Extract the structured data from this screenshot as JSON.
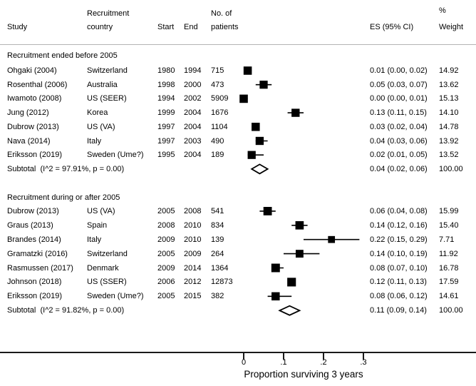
{
  "header": {
    "study": "Study",
    "country_line1": "Recruitment",
    "country_line2": "country",
    "start": "Start",
    "end": "End",
    "patients_line1": "No. of",
    "patients_line2": "patients",
    "es": "ES (95% CI)",
    "weight_line1": "%",
    "weight_line2": "Weight"
  },
  "chart_data": {
    "type": "forest",
    "xlabel": "Proportion surviving 3 years",
    "x_ticks": [
      {
        "label": "0",
        "value": 0
      },
      {
        "label": ".1",
        "value": 0.1
      },
      {
        "label": ".2",
        "value": 0.2
      },
      {
        "label": ".3",
        "value": 0.3
      }
    ],
    "xlim": [
      -0.61,
      0.58
    ],
    "marker_color": "#000000",
    "diamond_fill": "#ffffff",
    "groups": [
      {
        "label": "Recruitment ended before 2005",
        "studies": [
          {
            "study": "Ohgaki (2004)",
            "country": "Switzerland",
            "start": "1980",
            "end": "1994",
            "patients": "715",
            "es": 0.01,
            "lo": 0.0,
            "hi": 0.02,
            "es_text": "0.01 (0.00, 0.02)",
            "weight": "14.92"
          },
          {
            "study": "Rosenthal (2006)",
            "country": "Australia",
            "start": "1998",
            "end": "2000",
            "patients": "473",
            "es": 0.05,
            "lo": 0.03,
            "hi": 0.07,
            "es_text": "0.05 (0.03, 0.07)",
            "weight": "13.62"
          },
          {
            "study": "Iwamoto (2008)",
            "country": "US (SEER)",
            "start": "1994",
            "end": "2002",
            "patients": "5909",
            "es": 0.0,
            "lo": 0.0,
            "hi": 0.01,
            "es_text": "0.00 (0.00, 0.01)",
            "weight": "15.13"
          },
          {
            "study": "Jung (2012)",
            "country": "Korea",
            "start": "1999",
            "end": "2004",
            "patients": "1676",
            "es": 0.13,
            "lo": 0.11,
            "hi": 0.15,
            "es_text": "0.13 (0.11, 0.15)",
            "weight": "14.10"
          },
          {
            "study": "Dubrow (2013)",
            "country": "US (VA)",
            "start": "1997",
            "end": "2004",
            "patients": "1104",
            "es": 0.03,
            "lo": 0.02,
            "hi": 0.04,
            "es_text": "0.03 (0.02, 0.04)",
            "weight": "14.78"
          },
          {
            "study": "Nava (2014)",
            "country": "Italy",
            "start": "1997",
            "end": "2003",
            "patients": "490",
            "es": 0.04,
            "lo": 0.03,
            "hi": 0.06,
            "es_text": "0.04 (0.03, 0.06)",
            "weight": "13.92"
          },
          {
            "study": "Eriksson (2019)",
            "country": "Sweden (Ume?)",
            "start": "1995",
            "end": "2004",
            "patients": "189",
            "es": 0.02,
            "lo": 0.01,
            "hi": 0.05,
            "es_text": "0.02 (0.01, 0.05)",
            "weight": "13.52"
          }
        ],
        "subtotal": {
          "label": "Subtotal  (I^2 = 97.91%, p = 0.00)",
          "es": 0.04,
          "lo": 0.02,
          "hi": 0.06,
          "es_text": "0.04 (0.02, 0.06)",
          "weight": "100.00"
        }
      },
      {
        "label": "Recruitment during or after 2005",
        "studies": [
          {
            "study": "Dubrow (2013)",
            "country": "US (VA)",
            "start": "2005",
            "end": "2008",
            "patients": "541",
            "es": 0.06,
            "lo": 0.04,
            "hi": 0.08,
            "es_text": "0.06 (0.04, 0.08)",
            "weight": "15.99"
          },
          {
            "study": "Graus (2013)",
            "country": "Spain",
            "start": "2008",
            "end": "2010",
            "patients": "834",
            "es": 0.14,
            "lo": 0.12,
            "hi": 0.16,
            "es_text": "0.14 (0.12, 0.16)",
            "weight": "15.40"
          },
          {
            "study": "Brandes (2014)",
            "country": "Italy",
            "start": "2009",
            "end": "2010",
            "patients": "139",
            "es": 0.22,
            "lo": 0.15,
            "hi": 0.29,
            "es_text": "0.22 (0.15, 0.29)",
            "weight": "7.71"
          },
          {
            "study": "Gramatzki (2016)",
            "country": "Switzerland",
            "start": "2005",
            "end": "2009",
            "patients": "264",
            "es": 0.14,
            "lo": 0.1,
            "hi": 0.19,
            "es_text": "0.14 (0.10, 0.19)",
            "weight": "11.92"
          },
          {
            "study": "Rasmussen (2017)",
            "country": "Denmark",
            "start": "2009",
            "end": "2014",
            "patients": "1364",
            "es": 0.08,
            "lo": 0.07,
            "hi": 0.1,
            "es_text": "0.08 (0.07, 0.10)",
            "weight": "16.78"
          },
          {
            "study": "Johnson (2018)",
            "country": "US (SSER)",
            "start": "2006",
            "end": "2012",
            "patients": "12873",
            "es": 0.12,
            "lo": 0.11,
            "hi": 0.13,
            "es_text": "0.12 (0.11, 0.13)",
            "weight": "17.59"
          },
          {
            "study": "Eriksson (2019)",
            "country": "Sweden (Ume?)",
            "start": "2005",
            "end": "2015",
            "patients": "382",
            "es": 0.08,
            "lo": 0.06,
            "hi": 0.12,
            "es_text": "0.08 (0.06, 0.12)",
            "weight": "14.61"
          }
        ],
        "subtotal": {
          "label": "Subtotal  (I^2 = 91.82%, p = 0.00)",
          "es": 0.11,
          "lo": 0.09,
          "hi": 0.14,
          "es_text": "0.11 (0.09, 0.14)",
          "weight": "100.00"
        }
      }
    ]
  }
}
